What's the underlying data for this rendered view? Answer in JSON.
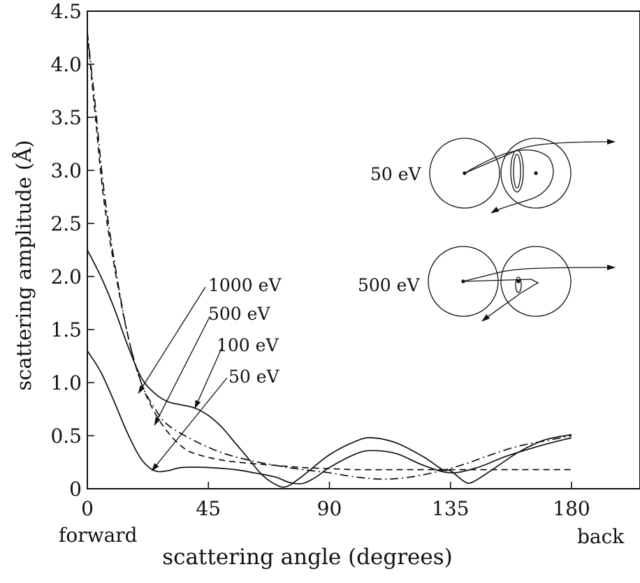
{
  "chart_data": {
    "type": "line",
    "title": "",
    "xlabel": "scattering angle (degrees)",
    "ylabel": "scattering amplitude (Å)",
    "xlim": [
      0,
      180
    ],
    "ylim": [
      0,
      4.5
    ],
    "x_ticks": [
      {
        "value": 0,
        "label": "0"
      },
      {
        "value": 45,
        "label": "45"
      },
      {
        "value": 90,
        "label": "90"
      },
      {
        "value": 135,
        "label": "135"
      },
      {
        "value": 180,
        "label": "180"
      }
    ],
    "y_ticks": [
      {
        "value": 0,
        "label": "0"
      },
      {
        "value": 0.5,
        "label": "0.5"
      },
      {
        "value": 1.0,
        "label": "1.0"
      },
      {
        "value": 1.5,
        "label": "1.5"
      },
      {
        "value": 2.0,
        "label": "2.0"
      },
      {
        "value": 2.5,
        "label": "2.5"
      },
      {
        "value": 3.0,
        "label": "3.0"
      },
      {
        "value": 3.5,
        "label": "3.5"
      },
      {
        "value": 4.0,
        "label": "4.0"
      },
      {
        "value": 4.5,
        "label": "4.5"
      }
    ],
    "axis_end_labels": {
      "left": "forward",
      "right": "back"
    },
    "grid": false,
    "series": [
      {
        "name": "1000 eV",
        "style": "dash-dot",
        "points": [
          [
            0,
            4.3
          ],
          [
            3,
            3.6
          ],
          [
            6,
            2.85
          ],
          [
            10,
            2.15
          ],
          [
            15,
            1.45
          ],
          [
            20,
            1.0
          ],
          [
            25,
            0.76
          ],
          [
            30,
            0.6
          ],
          [
            40,
            0.45
          ],
          [
            50,
            0.34
          ],
          [
            60,
            0.27
          ],
          [
            70,
            0.22
          ],
          [
            80,
            0.18
          ],
          [
            90,
            0.15
          ],
          [
            100,
            0.11
          ],
          [
            110,
            0.09
          ],
          [
            120,
            0.11
          ],
          [
            130,
            0.16
          ],
          [
            140,
            0.23
          ],
          [
            150,
            0.32
          ],
          [
            160,
            0.4
          ],
          [
            170,
            0.45
          ],
          [
            180,
            0.5
          ]
        ]
      },
      {
        "name": "500 eV",
        "style": "dashed",
        "points": [
          [
            0,
            4.3
          ],
          [
            3,
            3.5
          ],
          [
            6,
            2.75
          ],
          [
            10,
            2.1
          ],
          [
            15,
            1.45
          ],
          [
            20,
            1.0
          ],
          [
            25,
            0.72
          ],
          [
            30,
            0.53
          ],
          [
            35,
            0.4
          ],
          [
            40,
            0.33
          ],
          [
            50,
            0.27
          ],
          [
            60,
            0.24
          ],
          [
            70,
            0.22
          ],
          [
            80,
            0.2
          ],
          [
            90,
            0.19
          ],
          [
            100,
            0.18
          ],
          [
            120,
            0.18
          ],
          [
            140,
            0.18
          ],
          [
            160,
            0.18
          ],
          [
            180,
            0.18
          ]
        ]
      },
      {
        "name": "100 eV",
        "style": "solid",
        "points": [
          [
            0,
            2.25
          ],
          [
            5,
            2.0
          ],
          [
            10,
            1.7
          ],
          [
            15,
            1.35
          ],
          [
            20,
            1.05
          ],
          [
            25,
            0.9
          ],
          [
            30,
            0.82
          ],
          [
            35,
            0.79
          ],
          [
            40,
            0.76
          ],
          [
            45,
            0.69
          ],
          [
            50,
            0.58
          ],
          [
            55,
            0.43
          ],
          [
            60,
            0.28
          ],
          [
            65,
            0.13
          ],
          [
            70,
            0.04
          ],
          [
            74,
            0.02
          ],
          [
            80,
            0.12
          ],
          [
            90,
            0.32
          ],
          [
            100,
            0.45
          ],
          [
            106,
            0.48
          ],
          [
            115,
            0.43
          ],
          [
            125,
            0.3
          ],
          [
            132,
            0.18
          ],
          [
            135,
            0.17
          ],
          [
            140,
            0.07
          ],
          [
            143,
            0.06
          ],
          [
            150,
            0.17
          ],
          [
            160,
            0.34
          ],
          [
            170,
            0.46
          ],
          [
            180,
            0.51
          ]
        ]
      },
      {
        "name": "50 eV",
        "style": "solid",
        "points": [
          [
            0,
            1.3
          ],
          [
            5,
            1.1
          ],
          [
            10,
            0.82
          ],
          [
            15,
            0.52
          ],
          [
            20,
            0.28
          ],
          [
            25,
            0.17
          ],
          [
            30,
            0.17
          ],
          [
            35,
            0.2
          ],
          [
            45,
            0.2
          ],
          [
            55,
            0.18
          ],
          [
            62,
            0.15
          ],
          [
            70,
            0.11
          ],
          [
            75,
            0.06
          ],
          [
            80,
            0.05
          ],
          [
            85,
            0.11
          ],
          [
            90,
            0.2
          ],
          [
            100,
            0.33
          ],
          [
            106,
            0.36
          ],
          [
            115,
            0.33
          ],
          [
            125,
            0.22
          ],
          [
            135,
            0.15
          ],
          [
            145,
            0.2
          ],
          [
            155,
            0.3
          ],
          [
            165,
            0.38
          ],
          [
            172,
            0.43
          ],
          [
            180,
            0.48
          ]
        ]
      }
    ],
    "annotations": [
      {
        "text": "1000 eV",
        "target_series": "1000 eV",
        "points_to": [
          19,
          0.9
        ]
      },
      {
        "text": "500 eV",
        "target_series": "500 eV",
        "points_to": [
          25,
          0.6
        ]
      },
      {
        "text": "100 eV",
        "target_series": "100 eV",
        "points_to": [
          40,
          0.76
        ]
      },
      {
        "text": "50 eV",
        "target_series": "50 eV",
        "points_to": [
          24,
          0.17
        ]
      }
    ],
    "insets": [
      {
        "label": "50 eV"
      },
      {
        "label": "500 eV"
      }
    ]
  }
}
